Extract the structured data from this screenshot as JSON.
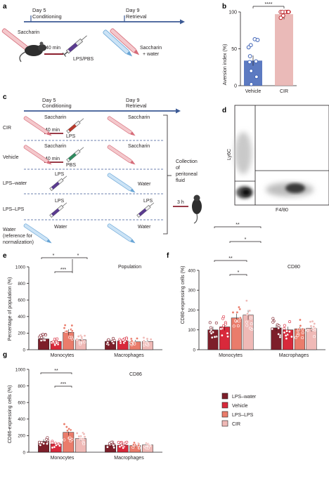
{
  "colors": {
    "lps_water": "#7d1f2a",
    "vehicle": "#d8293b",
    "lps_lps": "#ea7c6b",
    "cir": "#efb9b6",
    "vehicle_b": "#3f63b6",
    "cir_b": "#e6aeab",
    "cir_b_dots": "#c0272d",
    "timeline": "#3c5a95",
    "syringe_red": "#ba3a2c",
    "syringe_green": "#2f8b5f",
    "syringe_purple": "#5b3b90",
    "saccharin": "#e89aa2",
    "water": "#8fbfe6"
  },
  "panel_a": {
    "label": "a",
    "day5": "Day 5",
    "conditioning": "Conditioning",
    "day9": "Day 9",
    "retrieval": "Retrieval",
    "saccharin": "Saccharin",
    "min40": "40 min",
    "lpspbs": "LPS/PBS",
    "sacc_water": "Saccharin",
    "plus_water": "+ water"
  },
  "panel_b": {
    "label": "b",
    "ylabel": "Aversion index (%)",
    "sig": "****"
  },
  "panel_c": {
    "label": "c",
    "day5": "Day 5",
    "conditioning": "Conditioning",
    "day9": "Day 9",
    "retrieval": "Retrieval",
    "rows": [
      {
        "name": "CIR",
        "left": "Saccharin",
        "right": "Saccharin",
        "min": "40 min",
        "drug": "LPS"
      },
      {
        "name": "Vehicle",
        "left": "Saccharin",
        "right": "Saccharin",
        "min": "40 min",
        "drug": "PBS"
      },
      {
        "name": "LPS–water",
        "left": "LPS",
        "right": "Water"
      },
      {
        "name": "LPS–LPS",
        "left": "LPS",
        "right": "LPS"
      },
      {
        "name": "Water",
        "name2": "(reference for",
        "name3": "normalization)",
        "left": "Water",
        "right": "Water"
      }
    ],
    "collection": [
      "Collection",
      "of",
      "peritoneal",
      "fluid"
    ],
    "h3": "3 h"
  },
  "panel_d": {
    "label": "d",
    "ylabel": "Ly6C",
    "xlabel": "F4/80"
  },
  "panel_e": {
    "label": "e",
    "ylabel": "Percentage of population (%)",
    "title": "Population",
    "sig": [
      "*",
      "***",
      "*"
    ]
  },
  "panel_f": {
    "label": "f",
    "ylabel": "CD80-expressing cells (%)",
    "title": "CD80",
    "sig": [
      "**",
      "*",
      "**",
      "*"
    ]
  },
  "panel_g": {
    "label": "g",
    "ylabel": "CD86-expressing cells (%)",
    "title": "CD86",
    "sig": [
      "**",
      "***"
    ]
  },
  "legend": {
    "items": [
      "LPS–water",
      "Vehicle",
      "LPS–LPS",
      "CIR"
    ]
  },
  "chart_data": [
    {
      "type": "bar",
      "panel": "b",
      "ylabel": "Aversion index (%)",
      "categories": [
        "Vehicle",
        "CIR"
      ],
      "ylim": [
        0,
        100
      ],
      "yticks": [
        0,
        50,
        100
      ],
      "values": [
        34,
        97
      ],
      "points": [
        [
          63,
          62,
          55,
          52,
          40,
          33,
          32,
          20,
          12,
          2
        ],
        [
          100,
          100,
          100,
          100,
          100,
          100,
          100,
          100,
          95,
          92
        ]
      ]
    },
    {
      "type": "bar",
      "panel": "e",
      "title": "Population",
      "ylabel": "Percentage of population (%)",
      "categories": [
        "Monocytes",
        "Macrophages"
      ],
      "ylim": [
        0,
        1000
      ],
      "yticks": [
        0,
        200,
        400,
        600,
        800,
        1000
      ],
      "series": [
        {
          "name": "LPS–water",
          "values": [
            130,
            100
          ]
        },
        {
          "name": "Vehicle",
          "values": [
            100,
            105
          ]
        },
        {
          "name": "LPS–LPS",
          "values": [
            210,
            95
          ]
        },
        {
          "name": "CIR",
          "values": [
            120,
            100
          ]
        }
      ]
    },
    {
      "type": "bar",
      "panel": "f",
      "title": "CD80",
      "ylabel": "CD80-expressing cells (%)",
      "categories": [
        "Monocytes",
        "Macrophages"
      ],
      "ylim": [
        0,
        400
      ],
      "yticks": [
        0,
        100,
        200,
        300,
        400
      ],
      "series": [
        {
          "name": "LPS–water",
          "values": [
            100,
            110
          ]
        },
        {
          "name": "Vehicle",
          "values": [
            115,
            100
          ]
        },
        {
          "name": "LPS–LPS",
          "values": [
            160,
            105
          ]
        },
        {
          "name": "CIR",
          "values": [
            175,
            108
          ]
        }
      ]
    },
    {
      "type": "bar",
      "panel": "g",
      "title": "CD86",
      "ylabel": "CD86-expressing cells (%)",
      "categories": [
        "Monocytes",
        "Macrophages"
      ],
      "ylim": [
        0,
        1000
      ],
      "yticks": [
        0,
        200,
        400,
        600,
        800,
        1000
      ],
      "series": [
        {
          "name": "LPS–water",
          "values": [
            130,
            85
          ]
        },
        {
          "name": "Vehicle",
          "values": [
            100,
            85
          ]
        },
        {
          "name": "LPS–LPS",
          "values": [
            240,
            80
          ]
        },
        {
          "name": "CIR",
          "values": [
            165,
            88
          ]
        }
      ]
    }
  ]
}
